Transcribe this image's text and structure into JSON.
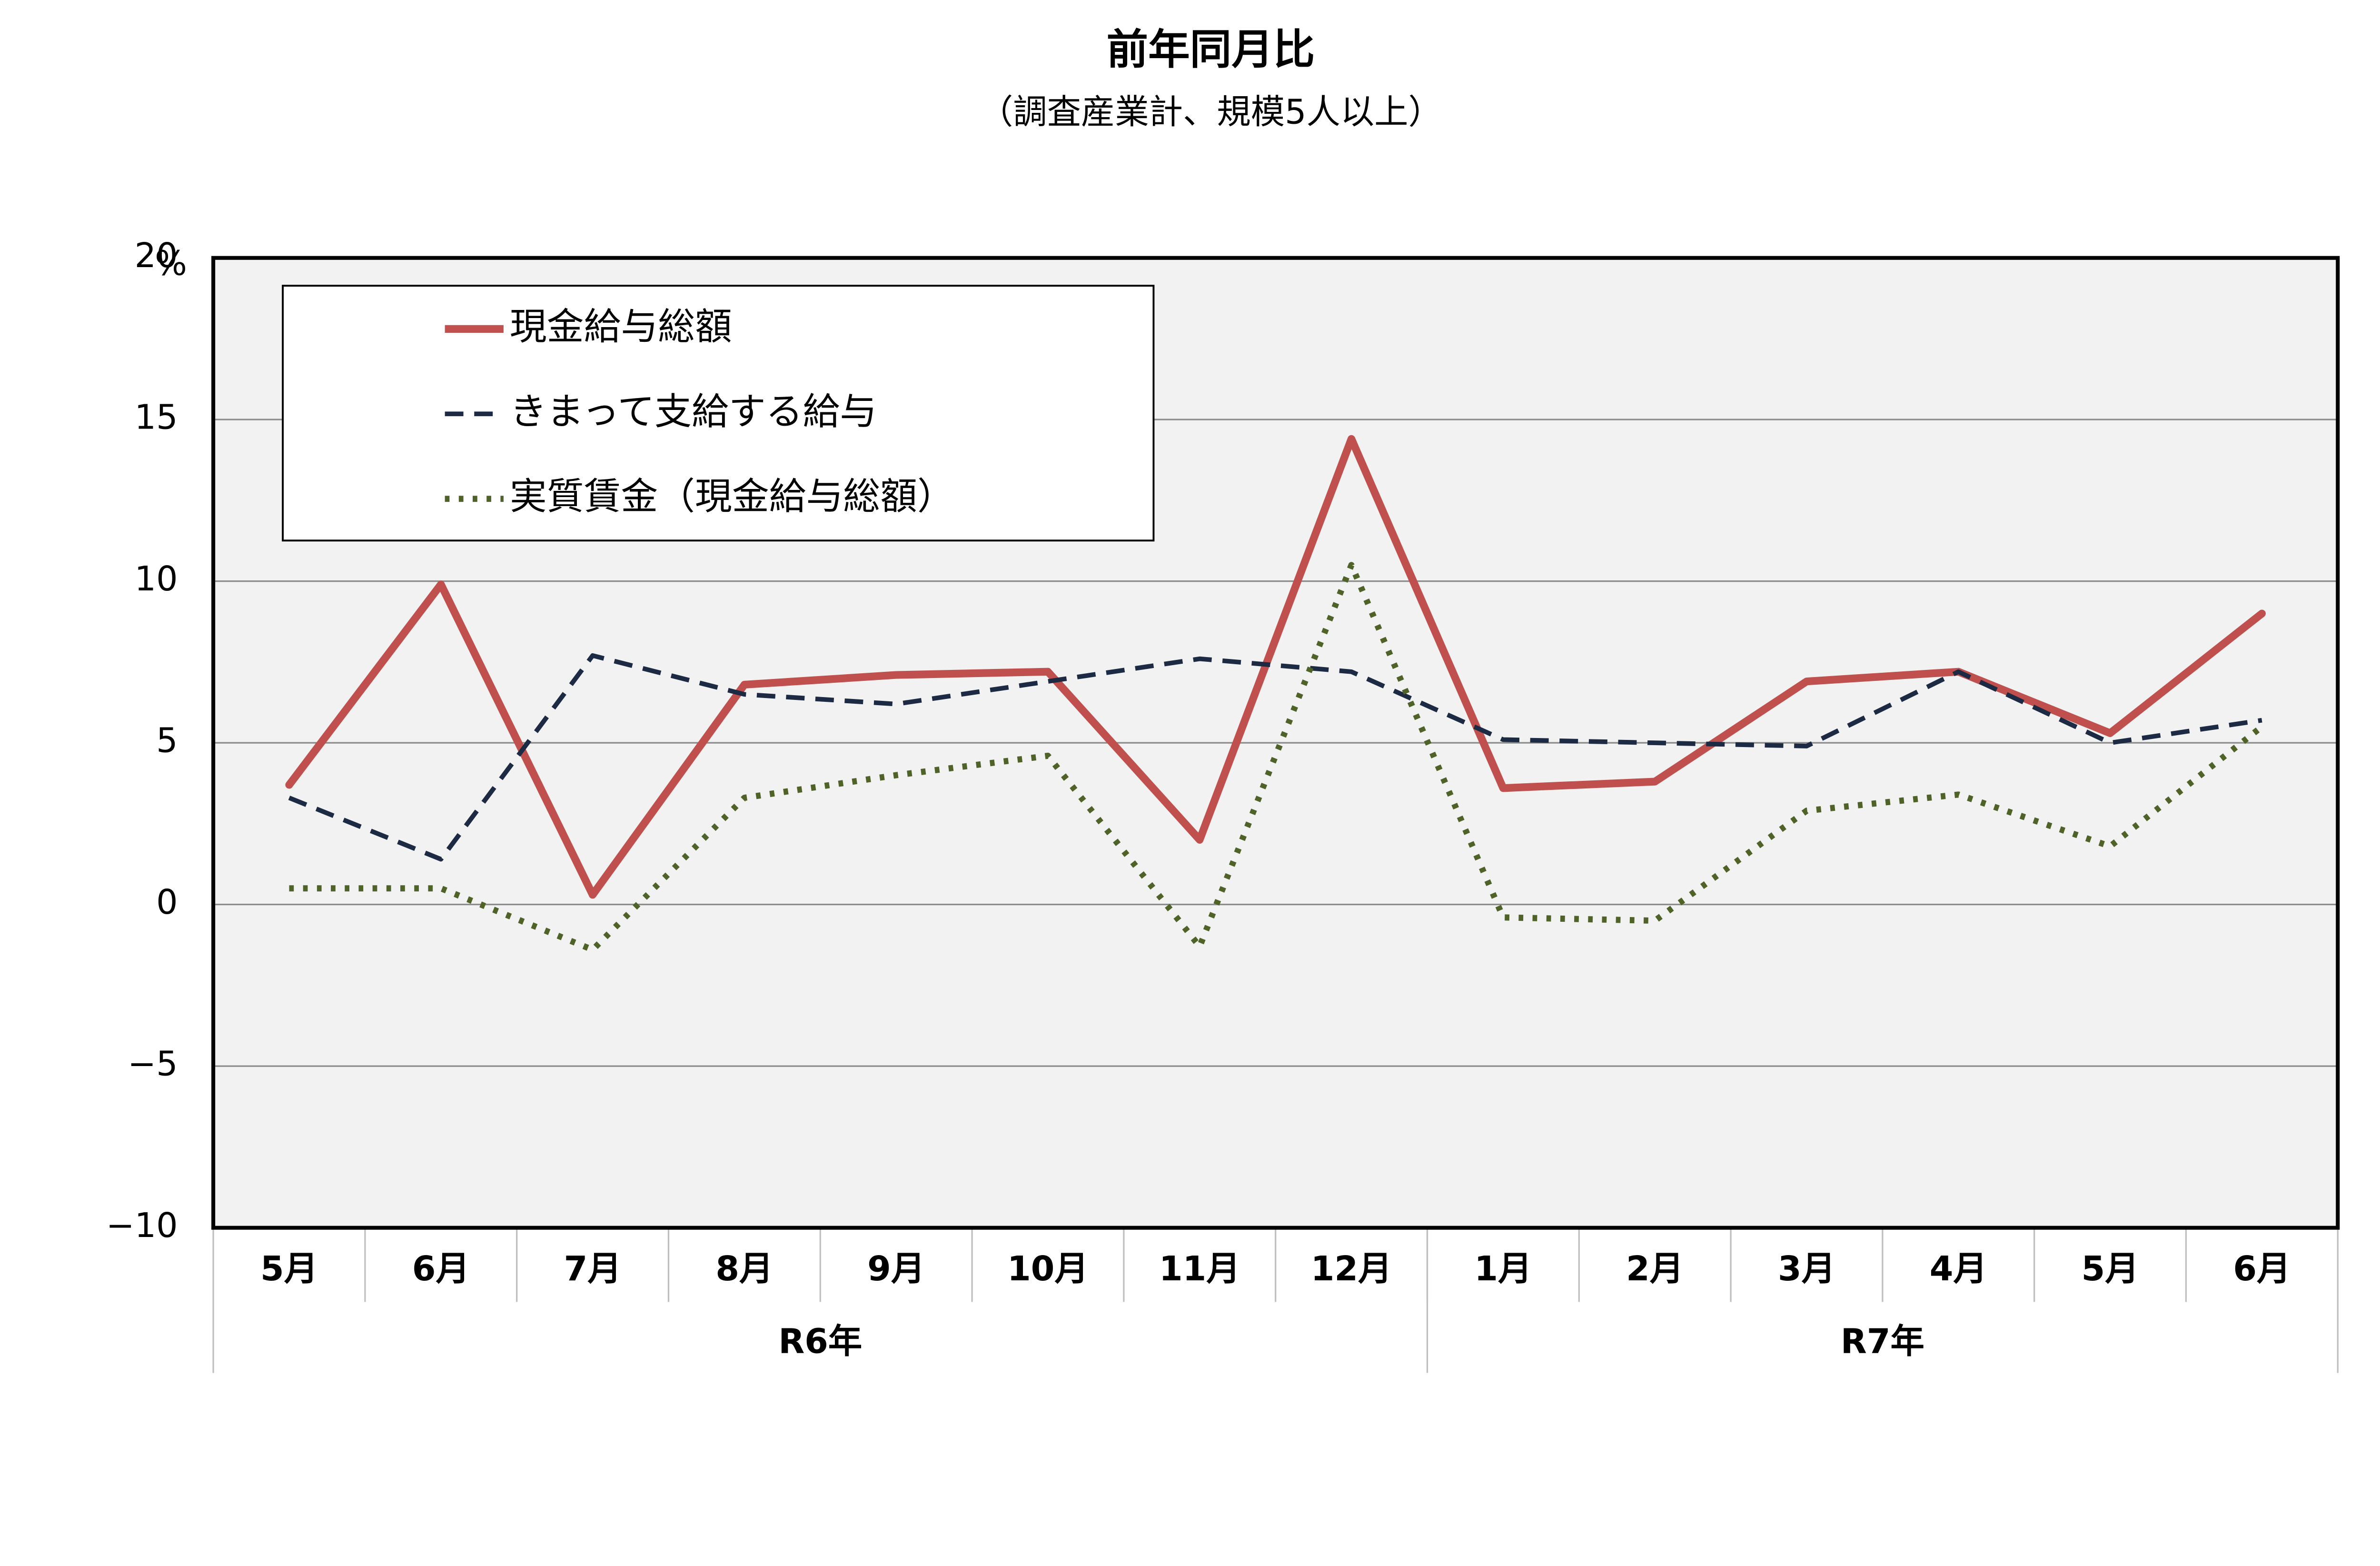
{
  "chart_data": {
    "type": "line",
    "title": "前年同月比",
    "subtitle": "（調査産業計、規模5人以上）",
    "y_unit": "%",
    "categories": [
      "5月",
      "6月",
      "7月",
      "8月",
      "9月",
      "10月",
      "11月",
      "12月",
      "1月",
      "2月",
      "3月",
      "4月",
      "5月",
      "6月"
    ],
    "groups": [
      {
        "label": "R6年",
        "count": 8
      },
      {
        "label": "R7年",
        "count": 6
      }
    ],
    "series": [
      {
        "name": "現金給与総額",
        "color": "#c0504d",
        "style": "solid",
        "values": [
          3.7,
          9.9,
          0.3,
          6.8,
          7.1,
          7.2,
          2.0,
          14.4,
          3.6,
          3.8,
          6.9,
          7.2,
          5.3,
          9.0
        ]
      },
      {
        "name": "きまって支給する給与",
        "color": "#1c2a44",
        "style": "dashed",
        "values": [
          3.3,
          1.4,
          7.7,
          6.5,
          6.2,
          6.9,
          7.6,
          7.2,
          5.1,
          5.0,
          4.9,
          7.2,
          5.0,
          5.7
        ]
      },
      {
        "name": "実質賃金（現金給与総額）",
        "color": "#4f6228",
        "style": "dotted",
        "values": [
          0.5,
          0.5,
          -1.4,
          3.3,
          4.0,
          4.6,
          -1.3,
          10.5,
          -0.4,
          -0.5,
          2.9,
          3.4,
          1.8,
          5.5
        ]
      }
    ],
    "ylim": [
      -10,
      20
    ],
    "yticks": [
      {
        "value": -10,
        "label": "−10"
      },
      {
        "value": -5,
        "label": "−5"
      },
      0,
      5,
      10,
      15,
      20
    ],
    "grid": true,
    "legend": "top-left"
  }
}
